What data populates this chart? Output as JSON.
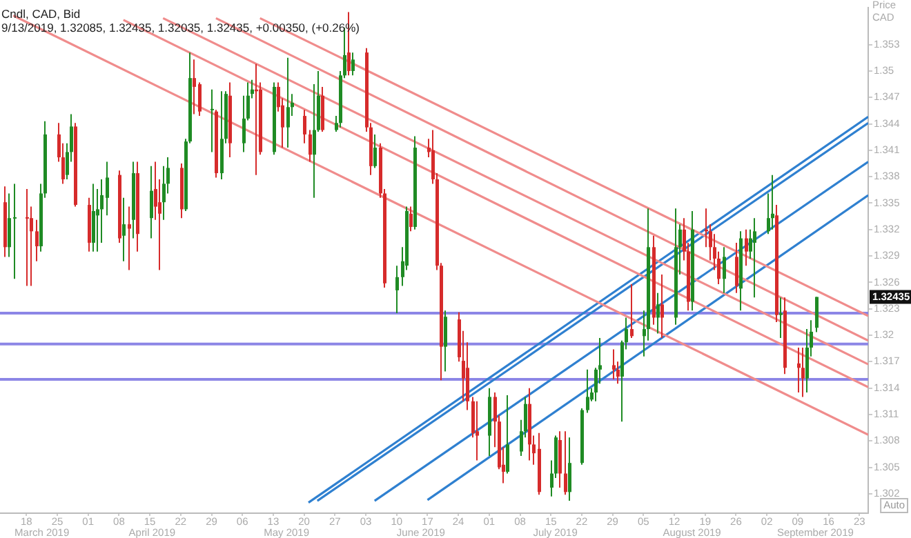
{
  "chart_data": {
    "type": "candlestick",
    "title": "Cndl, CAD, Bid",
    "subtitle": "9/13/2019, 1.32085, 1.32435, 1.32035, 1.32435, +0.00350, (+0.26%)",
    "ylabel": "Price CAD",
    "x": [
      "2019-03-13",
      "2019-03-14",
      "2019-03-15",
      "2019-03-18",
      "2019-03-19",
      "2019-03-20",
      "2019-03-21",
      "2019-03-22",
      "2019-03-25",
      "2019-03-26",
      "2019-03-27",
      "2019-03-28",
      "2019-03-29",
      "2019-04-01",
      "2019-04-02",
      "2019-04-03",
      "2019-04-04",
      "2019-04-05",
      "2019-04-08",
      "2019-04-09",
      "2019-04-10",
      "2019-04-11",
      "2019-04-12",
      "2019-04-15",
      "2019-04-16",
      "2019-04-17",
      "2019-04-18",
      "2019-04-19",
      "2019-04-22",
      "2019-04-23",
      "2019-04-24",
      "2019-04-25",
      "2019-04-26",
      "2019-04-29",
      "2019-04-30",
      "2019-05-01",
      "2019-05-02",
      "2019-05-03",
      "2019-05-06",
      "2019-05-07",
      "2019-05-08",
      "2019-05-09",
      "2019-05-10",
      "2019-05-13",
      "2019-05-14",
      "2019-05-15",
      "2019-05-16",
      "2019-05-17",
      "2019-05-20",
      "2019-05-21",
      "2019-05-22",
      "2019-05-23",
      "2019-05-24",
      "2019-05-27",
      "2019-05-28",
      "2019-05-29",
      "2019-05-30",
      "2019-05-31",
      "2019-06-03",
      "2019-06-04",
      "2019-06-05",
      "2019-06-06",
      "2019-06-07",
      "2019-06-10",
      "2019-06-11",
      "2019-06-12",
      "2019-06-13",
      "2019-06-14",
      "2019-06-17",
      "2019-06-18",
      "2019-06-19",
      "2019-06-20",
      "2019-06-21",
      "2019-06-24",
      "2019-06-25",
      "2019-06-26",
      "2019-06-27",
      "2019-06-28",
      "2019-07-01",
      "2019-07-02",
      "2019-07-03",
      "2019-07-04",
      "2019-07-05",
      "2019-07-08",
      "2019-07-09",
      "2019-07-10",
      "2019-07-11",
      "2019-07-12",
      "2019-07-15",
      "2019-07-16",
      "2019-07-17",
      "2019-07-18",
      "2019-07-19",
      "2019-07-22",
      "2019-07-23",
      "2019-07-24",
      "2019-07-25",
      "2019-07-26",
      "2019-07-29",
      "2019-07-30",
      "2019-07-31",
      "2019-08-01",
      "2019-08-02",
      "2019-08-05",
      "2019-08-06",
      "2019-08-07",
      "2019-08-08",
      "2019-08-09",
      "2019-08-12",
      "2019-08-13",
      "2019-08-14",
      "2019-08-15",
      "2019-08-16",
      "2019-08-19",
      "2019-08-20",
      "2019-08-21",
      "2019-08-22",
      "2019-08-23",
      "2019-08-26",
      "2019-08-27",
      "2019-08-28",
      "2019-08-29",
      "2019-08-30",
      "2019-09-02",
      "2019-09-03",
      "2019-09-04",
      "2019-09-05",
      "2019-09-06",
      "2019-09-09",
      "2019-09-10",
      "2019-09-11",
      "2019-09-12",
      "2019-09-13"
    ],
    "ohlc": [
      [
        1.3351,
        1.3369,
        1.3289,
        1.33
      ],
      [
        1.33,
        1.3361,
        1.3289,
        1.3333
      ],
      [
        1.3333,
        1.3372,
        1.3264,
        1.3334
      ],
      [
        1.3334,
        1.3366,
        1.3256,
        1.3333
      ],
      [
        1.3333,
        1.3346,
        1.3256,
        1.3318
      ],
      [
        1.3318,
        1.3331,
        1.3284,
        1.3301
      ],
      [
        1.3301,
        1.3372,
        1.3295,
        1.3361
      ],
      [
        1.3361,
        1.3443,
        1.3356,
        1.3428
      ],
      [
        1.3428,
        1.3441,
        1.3397,
        1.3402
      ],
      [
        1.3402,
        1.3418,
        1.3372,
        1.3377
      ],
      [
        1.3382,
        1.3418,
        1.3377,
        1.3408
      ],
      [
        1.3408,
        1.3451,
        1.3397,
        1.3437
      ],
      [
        1.3437,
        1.3441,
        1.3346,
        1.3348
      ],
      [
        1.3348,
        1.3356,
        1.3295,
        1.3305
      ],
      [
        1.3305,
        1.3372,
        1.3295,
        1.3341
      ],
      [
        1.3336,
        1.3366,
        1.3295,
        1.3343
      ],
      [
        1.3343,
        1.3377,
        1.3305,
        1.3359
      ],
      [
        1.3356,
        1.3397,
        1.3336,
        1.3379
      ],
      [
        1.3382,
        1.3387,
        1.3305,
        1.331
      ],
      [
        1.3313,
        1.3356,
        1.3284,
        1.3326
      ],
      [
        1.3326,
        1.3346,
        1.3274,
        1.3321
      ],
      [
        1.3331,
        1.3397,
        1.331,
        1.3384
      ],
      [
        1.3384,
        1.3397,
        1.3295,
        1.3315
      ],
      [
        1.3333,
        1.3392,
        1.331,
        1.3364
      ],
      [
        1.3366,
        1.3397,
        1.3331,
        1.3346
      ],
      [
        1.3351,
        1.3377,
        1.3274,
        1.3338
      ],
      [
        1.3351,
        1.3392,
        1.3331,
        1.3372
      ],
      [
        1.3372,
        1.3402,
        1.3361,
        1.339
      ],
      [
        1.339,
        1.3395,
        1.3333,
        1.3343
      ],
      [
        1.3343,
        1.3423,
        1.3341,
        1.342
      ],
      [
        1.342,
        1.3521,
        1.3418,
        1.3492
      ],
      [
        1.3492,
        1.3513,
        1.3451,
        1.3482
      ],
      [
        1.3485,
        1.3487,
        1.3449,
        1.3454
      ],
      [
        1.3456,
        1.3479,
        1.3408,
        1.3457
      ],
      [
        1.3454,
        1.3456,
        1.3379,
        1.3384
      ],
      [
        1.3384,
        1.3477,
        1.3377,
        1.3423
      ],
      [
        1.3423,
        1.3477,
        1.3418,
        1.3474
      ],
      [
        1.3472,
        1.3487,
        1.3402,
        1.3418
      ],
      [
        1.3418,
        1.3472,
        1.3408,
        1.3446
      ],
      [
        1.3446,
        1.3487,
        1.3444,
        1.3472
      ],
      [
        1.3474,
        1.349,
        1.3469,
        1.3479
      ],
      [
        1.3479,
        1.3508,
        1.3382,
        1.3477
      ],
      [
        1.3479,
        1.3487,
        1.3405,
        1.3408
      ],
      [
        1.3408,
        1.3487,
        1.3405,
        1.3482
      ],
      [
        1.3482,
        1.3487,
        1.3454,
        1.3459
      ],
      [
        1.3461,
        1.3469,
        1.3413,
        1.3436
      ],
      [
        1.3436,
        1.3515,
        1.3413,
        1.3459
      ],
      [
        1.3459,
        1.3474,
        1.3449,
        1.3464
      ],
      [
        1.3449,
        1.3456,
        1.3418,
        1.3428
      ],
      [
        1.3428,
        1.3433,
        1.3397,
        1.3405
      ],
      [
        1.3405,
        1.3485,
        1.3356,
        1.3433
      ],
      [
        1.3433,
        1.35,
        1.3431,
        1.3472
      ],
      [
        1.3472,
        1.3482,
        1.3431,
        1.3433
      ],
      [
        1.3433,
        1.3449,
        1.3431,
        1.3441
      ],
      [
        1.3441,
        1.35,
        1.3436,
        1.3495
      ],
      [
        1.3495,
        1.3549,
        1.3492,
        1.3518
      ],
      [
        1.3521,
        1.3567,
        1.3495,
        1.35
      ],
      [
        1.35,
        1.3521,
        1.3495,
        1.3513
      ],
      [
        1.3521,
        1.3526,
        1.3431,
        1.3436
      ],
      [
        1.3436,
        1.3441,
        1.3382,
        1.3392
      ],
      [
        1.3392,
        1.3428,
        1.339,
        1.3413
      ],
      [
        1.3413,
        1.3418,
        1.3356,
        1.3361
      ],
      [
        1.3361,
        1.3366,
        1.3254,
        1.3259
      ],
      [
        1.3251,
        1.3279,
        1.3225,
        1.3266
      ],
      [
        1.3266,
        1.33,
        1.3256,
        1.3284
      ],
      [
        1.3279,
        1.3346,
        1.3274,
        1.3341
      ],
      [
        1.3338,
        1.3346,
        1.3318,
        1.3323
      ],
      [
        1.3323,
        1.3426,
        1.332,
        1.3413
      ],
      [
        1.3413,
        1.3423,
        1.3402,
        1.3408
      ],
      [
        1.341,
        1.3433,
        1.3372,
        1.3377
      ],
      [
        1.3377,
        1.3384,
        1.3274,
        1.3279
      ],
      [
        1.3279,
        1.3282,
        1.3149,
        1.3187
      ],
      [
        1.3187,
        1.3228,
        1.3159,
        1.3221
      ],
      [
        1.3218,
        1.3226,
        1.317,
        1.3175
      ],
      [
        1.3171,
        1.3205,
        1.3125,
        1.3151
      ],
      [
        1.3163,
        1.3192,
        1.3115,
        1.3125
      ],
      [
        1.3125,
        1.313,
        1.3084,
        1.3089
      ],
      [
        1.3091,
        1.3125,
        1.3058,
        1.3086
      ],
      [
        1.3086,
        1.314,
        1.3063,
        1.313
      ],
      [
        1.313,
        1.3135,
        1.3073,
        1.3102
      ],
      [
        1.3102,
        1.3109,
        1.3048,
        1.305
      ],
      [
        1.3053,
        1.3073,
        1.3032,
        1.3045
      ],
      [
        1.3045,
        1.3132,
        1.3043,
        1.3076
      ],
      [
        1.3068,
        1.3104,
        1.3063,
        1.3091
      ],
      [
        1.3091,
        1.313,
        1.3084,
        1.3122
      ],
      [
        1.3122,
        1.314,
        1.3058,
        1.3076
      ],
      [
        1.3076,
        1.3086,
        1.3053,
        1.3066
      ],
      [
        1.3071,
        1.3089,
        1.3019,
        1.3022
      ],
      [
        1.3027,
        1.3058,
        1.3017,
        1.3043
      ],
      [
        1.3043,
        1.3086,
        1.3038,
        1.3084
      ],
      [
        1.3081,
        1.3091,
        1.3027,
        1.3043
      ],
      [
        1.3043,
        1.3091,
        1.3019,
        1.3022
      ],
      [
        1.3022,
        1.3084,
        1.3012,
        1.3055
      ],
      [
        1.3055,
        1.3117,
        1.3053,
        1.3115
      ],
      [
        1.3115,
        1.3161,
        1.3112,
        1.313
      ],
      [
        1.3127,
        1.314,
        1.3125,
        1.3135
      ],
      [
        1.3135,
        1.3163,
        1.3125,
        1.3161
      ],
      [
        1.3161,
        1.3197,
        1.3145,
        1.3166
      ],
      [
        1.3166,
        1.3184,
        1.315,
        1.3161
      ],
      [
        1.3161,
        1.317,
        1.3145,
        1.3153
      ],
      [
        1.3153,
        1.3194,
        1.3102,
        1.3192
      ],
      [
        1.3192,
        1.322,
        1.3184,
        1.3207
      ],
      [
        1.3207,
        1.3258,
        1.3197,
        1.3199
      ],
      [
        1.3199,
        1.3228,
        1.3176,
        1.3207
      ],
      [
        1.3207,
        1.3344,
        1.3194,
        1.33
      ],
      [
        1.33,
        1.3313,
        1.3212,
        1.322
      ],
      [
        1.322,
        1.3248,
        1.3202,
        1.3235
      ],
      [
        1.3235,
        1.3269,
        1.3197,
        1.322
      ],
      [
        1.322,
        1.3344,
        1.3212,
        1.33
      ],
      [
        1.33,
        1.3326,
        1.3269,
        1.332
      ],
      [
        1.332,
        1.3333,
        1.3285,
        1.3295
      ],
      [
        1.3295,
        1.3305,
        1.3228,
        1.3238
      ],
      [
        1.3238,
        1.3341,
        1.3228,
        1.332
      ],
      [
        1.332,
        1.3344,
        1.33,
        1.3318
      ],
      [
        1.3318,
        1.3326,
        1.3285,
        1.33
      ],
      [
        1.33,
        1.3315,
        1.3274,
        1.3287
      ],
      [
        1.3287,
        1.3295,
        1.3258,
        1.3264
      ],
      [
        1.3264,
        1.33,
        1.3248,
        1.3289
      ],
      [
        1.3289,
        1.3305,
        1.3248,
        1.3256
      ],
      [
        1.3253,
        1.3318,
        1.3228,
        1.331
      ],
      [
        1.331,
        1.332,
        1.3279,
        1.3295
      ],
      [
        1.3295,
        1.332,
        1.3287,
        1.331
      ],
      [
        1.3305,
        1.3333,
        1.3243,
        1.3318
      ],
      [
        1.3318,
        1.3361,
        1.3315,
        1.3333
      ],
      [
        1.3333,
        1.3382,
        1.332,
        1.3338
      ],
      [
        1.3336,
        1.3348,
        1.3215,
        1.3223
      ],
      [
        1.3223,
        1.3243,
        1.3197,
        1.3225
      ],
      [
        1.3228,
        1.3243,
        1.3156,
        1.3163
      ],
      [
        1.3168,
        1.3186,
        1.3135,
        1.3163
      ],
      [
        1.3163,
        1.3186,
        1.313,
        1.3151
      ],
      [
        1.3151,
        1.3207,
        1.3135,
        1.3186
      ],
      [
        1.3186,
        1.3217,
        1.3176,
        1.3204
      ],
      [
        1.32085,
        1.32435,
        1.32035,
        1.32435
      ]
    ],
    "colors": [
      "#d62b2b",
      "#1f8b24",
      "#1f8b24",
      "#d62b2b",
      "#d62b2b",
      "#d62b2b",
      "#1f8b24",
      "#1f8b24",
      "#d62b2b",
      "#d62b2b",
      "#1f8b24",
      "#1f8b24",
      "#d62b2b",
      "#d62b2b",
      "#1f8b24",
      "#1f8b24",
      "#1f8b24",
      "#1f8b24",
      "#d62b2b",
      "#1f8b24",
      "#d62b2b",
      "#1f8b24",
      "#d62b2b",
      "#1f8b24",
      "#d62b2b",
      "#d62b2b",
      "#1f8b24",
      "#1f8b24",
      "#d62b2b",
      "#1f8b24",
      "#1f8b24",
      "#d62b2b",
      "#d62b2b",
      "#1f8b24",
      "#d62b2b",
      "#1f8b24",
      "#1f8b24",
      "#d62b2b",
      "#1f8b24",
      "#1f8b24",
      "#1f8b24",
      "#d62b2b",
      "#d62b2b",
      "#1f8b24",
      "#d62b2b",
      "#d62b2b",
      "#1f8b24",
      "#1f8b24",
      "#d62b2b",
      "#d62b2b",
      "#1f8b24",
      "#1f8b24",
      "#d62b2b",
      "#1f8b24",
      "#1f8b24",
      "#1f8b24",
      "#d62b2b",
      "#1f8b24",
      "#d62b2b",
      "#d62b2b",
      "#1f8b24",
      "#d62b2b",
      "#d62b2b",
      "#1f8b24",
      "#1f8b24",
      "#1f8b24",
      "#d62b2b",
      "#1f8b24",
      "#d62b2b",
      "#d62b2b",
      "#d62b2b",
      "#d62b2b",
      "#1f8b24",
      "#d62b2b",
      "#d62b2b",
      "#d62b2b",
      "#d62b2b",
      "#d62b2b",
      "#1f8b24",
      "#d62b2b",
      "#d62b2b",
      "#d62b2b",
      "#1f8b24",
      "#1f8b24",
      "#1f8b24",
      "#d62b2b",
      "#d62b2b",
      "#d62b2b",
      "#1f8b24",
      "#1f8b24",
      "#d62b2b",
      "#d62b2b",
      "#1f8b24",
      "#1f8b24",
      "#1f8b24",
      "#1f8b24",
      "#1f8b24",
      "#1f8b24",
      "#d62b2b",
      "#d62b2b",
      "#1f8b24",
      "#1f8b24",
      "#d62b2b",
      "#1f8b24",
      "#1f8b24",
      "#d62b2b",
      "#1f8b24",
      "#d62b2b",
      "#1f8b24",
      "#1f8b24",
      "#d62b2b",
      "#d62b2b",
      "#1f8b24",
      "#d62b2b",
      "#d62b2b",
      "#d62b2b",
      "#d62b2b",
      "#1f8b24",
      "#d62b2b",
      "#1f8b24",
      "#d62b2b",
      "#1f8b24",
      "#1f8b24",
      "#1f8b24",
      "#1f8b24",
      "#d62b2b",
      "#1f8b24",
      "#d62b2b",
      "#d62b2b",
      "#d62b2b",
      "#1f8b24",
      "#1f8b24",
      "#1f8b24"
    ],
    "series": [
      {
        "type": "line",
        "color": "#f08c8c",
        "x": [
          "2019-05-10",
          "2019-09-25"
        ],
        "values": [
          1.356,
          1.3222
        ]
      },
      {
        "type": "line",
        "color": "#f08c8c",
        "x": [
          "2019-04-30",
          "2019-09-25"
        ],
        "values": [
          1.356,
          1.3194
        ]
      },
      {
        "type": "line",
        "color": "#f08c8c",
        "x": [
          "2019-04-18",
          "2019-09-25"
        ],
        "values": [
          1.356,
          1.3167
        ]
      },
      {
        "type": "line",
        "color": "#f08c8c",
        "x": [
          "2019-04-09",
          "2019-09-25"
        ],
        "values": [
          1.3558,
          1.3141
        ]
      },
      {
        "type": "line",
        "color": "#f08c8c",
        "x": [
          "2019-03-15",
          "2019-09-25"
        ],
        "values": [
          1.3563,
          1.3087
        ]
      },
      {
        "type": "line",
        "color": "#2f80d0",
        "x": [
          "2019-05-21",
          "2019-09-25"
        ],
        "values": [
          1.301,
          1.3448
        ]
      },
      {
        "type": "line",
        "color": "#2f80d0",
        "x": [
          "2019-05-23",
          "2019-09-25"
        ],
        "values": [
          1.3012,
          1.3441
        ]
      },
      {
        "type": "line",
        "color": "#2f80d0",
        "x": [
          "2019-06-05",
          "2019-09-25"
        ],
        "values": [
          1.3012,
          1.3397
        ]
      },
      {
        "type": "line",
        "color": "#2f80d0",
        "x": [
          "2019-06-17",
          "2019-09-25"
        ],
        "values": [
          1.3013,
          1.3359
        ]
      }
    ],
    "ref_lines": [
      {
        "axis": "y",
        "value": 1.3225,
        "color": "#8c86e6"
      },
      {
        "axis": "y",
        "value": 1.319,
        "color": "#8c86e6"
      },
      {
        "axis": "y",
        "value": 1.315,
        "color": "#8c86e6"
      }
    ],
    "xlim": [
      "2019-03-12",
      "2019-09-25"
    ],
    "xticks": [
      {
        "value": "2019-03-18",
        "label": "18"
      },
      {
        "value": "2019-03-25",
        "label": "25"
      },
      {
        "value": "2019-04-01",
        "label": "01"
      },
      {
        "value": "2019-04-08",
        "label": "08"
      },
      {
        "value": "2019-04-15",
        "label": "15"
      },
      {
        "value": "2019-04-22",
        "label": "22"
      },
      {
        "value": "2019-04-29",
        "label": "29"
      },
      {
        "value": "2019-05-06",
        "label": "06"
      },
      {
        "value": "2019-05-13",
        "label": "13"
      },
      {
        "value": "2019-05-20",
        "label": "20"
      },
      {
        "value": "2019-05-27",
        "label": "27"
      },
      {
        "value": "2019-06-03",
        "label": "03"
      },
      {
        "value": "2019-06-10",
        "label": "10"
      },
      {
        "value": "2019-06-17",
        "label": "17"
      },
      {
        "value": "2019-06-24",
        "label": "24"
      },
      {
        "value": "2019-07-01",
        "label": "01"
      },
      {
        "value": "2019-07-08",
        "label": "08"
      },
      {
        "value": "2019-07-15",
        "label": "15"
      },
      {
        "value": "2019-07-22",
        "label": "22"
      },
      {
        "value": "2019-07-29",
        "label": "29"
      },
      {
        "value": "2019-08-05",
        "label": "05"
      },
      {
        "value": "2019-08-12",
        "label": "12"
      },
      {
        "value": "2019-08-19",
        "label": "19"
      },
      {
        "value": "2019-08-26",
        "label": "26"
      },
      {
        "value": "2019-09-02",
        "label": "02"
      },
      {
        "value": "2019-09-09",
        "label": "09"
      },
      {
        "value": "2019-09-16",
        "label": "16"
      },
      {
        "value": "2019-09-23",
        "label": "23"
      }
    ],
    "ylim": [
      1.2998,
      1.3572
    ],
    "yticks": [
      1.302,
      1.305,
      1.308,
      1.311,
      1.314,
      1.317,
      1.32,
      1.323,
      1.326,
      1.329,
      1.332,
      1.335,
      1.338,
      1.341,
      1.344,
      1.347,
      1.35,
      1.353
    ],
    "annotations": [
      "March 2019",
      "April 2019",
      "May 2019",
      "June 2019",
      "July 2019",
      "August 2019",
      "September 2019",
      "1.32435",
      "Auto"
    ],
    "grid": false,
    "legend": false,
    "marker": "none",
    "line_style": "solid"
  }
}
